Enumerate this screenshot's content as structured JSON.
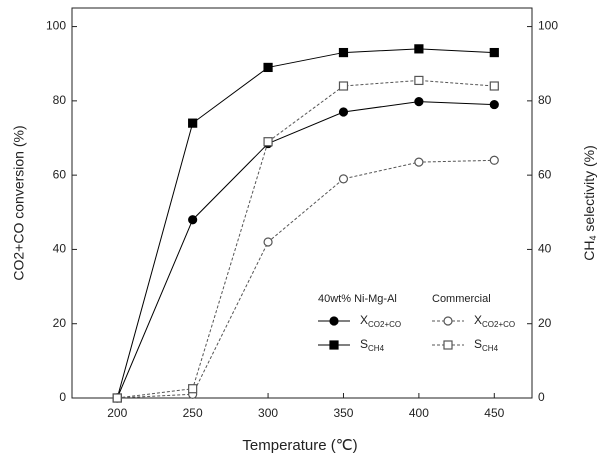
{
  "chart_data": {
    "type": "line",
    "x_label": "Temperature (℃)",
    "y_label": "CO2+CO conversion (%)",
    "y2_label": "CH",
    "y2_label_subscript": "4",
    "y2_label_rest": " selectivity (%)",
    "x": [
      200,
      250,
      300,
      350,
      400,
      450
    ],
    "xlim": [
      170,
      475
    ],
    "xticks": [
      200,
      250,
      300,
      350,
      400,
      450
    ],
    "ylim": [
      0,
      105
    ],
    "yticks": [
      0,
      20,
      40,
      60,
      80,
      100
    ],
    "y2lim": [
      0,
      105
    ],
    "y2ticks": [
      0,
      20,
      40,
      60,
      80,
      100
    ],
    "legend_groups": [
      "40wt% Ni-Mg-Al",
      "Commercial"
    ],
    "series": [
      {
        "name": "X",
        "name_subscript": "CO2+CO",
        "group": 0,
        "color": "#000000",
        "dash": false,
        "marker": "circle",
        "filled": true,
        "values": [
          0,
          48,
          68.5,
          77,
          79.8,
          79
        ]
      },
      {
        "name": "S",
        "name_subscript": "CH4",
        "group": 0,
        "color": "#000000",
        "dash": false,
        "marker": "square",
        "filled": true,
        "axis": "y2",
        "values": [
          0,
          74,
          89,
          93,
          94,
          93
        ]
      },
      {
        "name": "X",
        "name_subscript": "CO2+CO",
        "group": 1,
        "color": "#555555",
        "dash": true,
        "marker": "circle",
        "filled": false,
        "values": [
          0,
          1,
          42,
          59,
          63.5,
          64
        ]
      },
      {
        "name": "S",
        "name_subscript": "CH4",
        "group": 1,
        "color": "#555555",
        "dash": true,
        "marker": "square",
        "filled": false,
        "axis": "y2",
        "values": [
          0,
          2.5,
          69,
          84,
          85.5,
          84
        ]
      }
    ]
  }
}
